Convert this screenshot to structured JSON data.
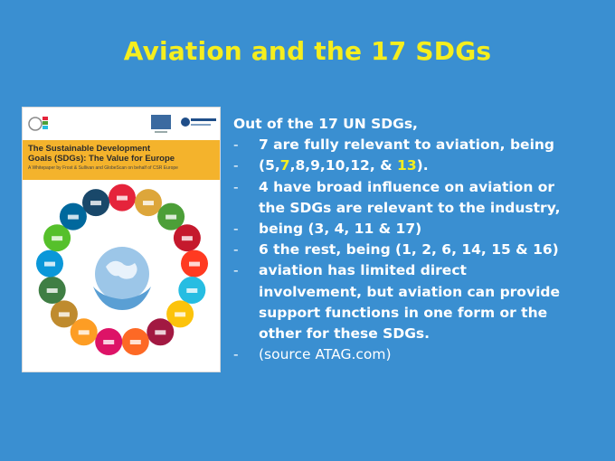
{
  "slide": {
    "title": "Aviation and the 17 SDGs"
  },
  "cover": {
    "title_line1": "The Sustainable Development",
    "title_line2": "Goals (SDGs): The Value for Europe",
    "subtitle": "A Whitepaper by Frost & Sullivan and GlobeScan on behalf of CSR Europe",
    "colors": {
      "band": "#f4b32c",
      "globe": "#9cc6e8",
      "sdg": [
        "#e5243b",
        "#dda63a",
        "#4c9f38",
        "#c5192d",
        "#ff3a21",
        "#26bde2",
        "#fcc30b",
        "#a21942",
        "#fd6925",
        "#dd1367",
        "#fd9d24",
        "#bf8b2e",
        "#3f7e44",
        "#0a97d9",
        "#56c02b",
        "#00689d",
        "#19486a"
      ]
    }
  },
  "content": {
    "intro": "Out of the 17 UN SDGs,",
    "bullet_marker": "-",
    "b1": "7 are fully relevant to aviation, being",
    "b2_pre": "(5,",
    "b2_hl1": "7",
    "b2_mid": ",8,9,10,12, & ",
    "b2_hl2": "13",
    "b2_post": ").",
    "b3_l1": "4 have broad influence on aviation or",
    "b3_l2": "the SDGs are relevant to the industry,",
    "b4": "being (3, 4, 11 & 17)",
    "b5": "6 the rest, being (1, 2, 6, 14, 15 & 16)",
    "b6_l1": "aviation has limited direct",
    "b6_l2": "involvement, but aviation can provide",
    "b6_l3": "support functions in one form or the",
    "b6_l4": "other for these SDGs.",
    "b7": "(source ATAG.com)"
  }
}
